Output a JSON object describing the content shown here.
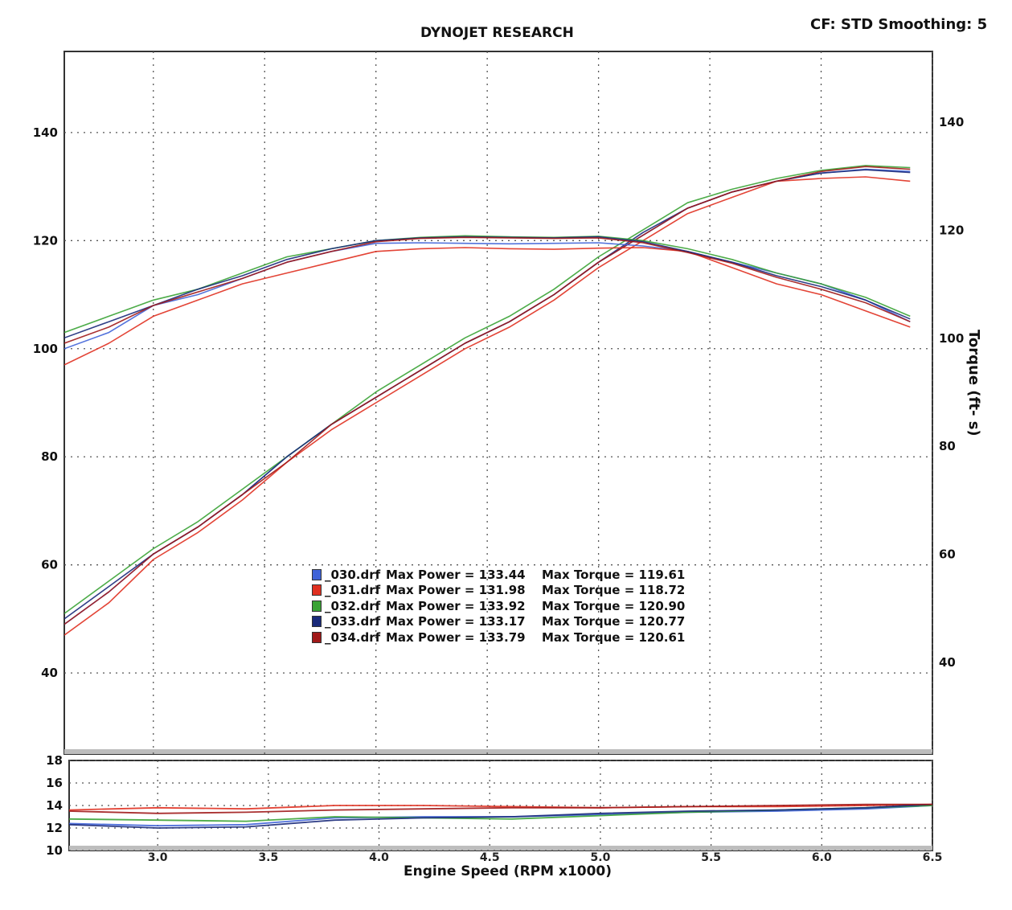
{
  "header": {
    "title": "DYNOJET RESEARCH",
    "settings": "CF: STD  Smoothing: 5"
  },
  "axes": {
    "xlabel": "Engine Speed (RPM x1000)",
    "ylabel_right": "Torque (ft- s)",
    "ylabel_left_main": "",
    "ylabel_left_afr": ""
  },
  "colors": {
    "030": "#3f63d8",
    "031": "#e03020",
    "032": "#3aa335",
    "033": "#1a2a7a",
    "034": "#a01818",
    "grid": "#555555"
  },
  "legend": [
    {
      "file": "_030.drf",
      "power": "Max Power = 133.44",
      "torque": "Max Torque = 119.61",
      "color": "#3f63d8"
    },
    {
      "file": "_031.drf",
      "power": "Max Power = 131.98",
      "torque": "Max Torque = 118.72",
      "color": "#e03020"
    },
    {
      "file": "_032.drf",
      "power": "Max Power = 133.92",
      "torque": "Max Torque = 120.90",
      "color": "#3aa335"
    },
    {
      "file": "_033.drf",
      "power": "Max Power = 133.17",
      "torque": "Max Torque = 120.77",
      "color": "#1a2a7a"
    },
    {
      "file": "_034.drf",
      "power": "Max Power = 133.79",
      "torque": "Max Torque = 120.61",
      "color": "#a01818"
    }
  ],
  "chart_data": [
    {
      "type": "line",
      "title": "DYNOJET RESEARCH",
      "xlabel": "Engine Speed (RPM x1000)",
      "ylabel": "",
      "y2label": "Torque (ft- s)",
      "xlim": [
        2.6,
        6.5
      ],
      "ylim": [
        25,
        155
      ],
      "y2lim": [
        25,
        155
      ],
      "x_ticks": [
        "3.0",
        "3.5",
        "4.0",
        "4.5",
        "5.0",
        "5.5",
        "6.0",
        "6.5"
      ],
      "y_ticks_left": [
        "40",
        "60",
        "80",
        "100",
        "120",
        "140"
      ],
      "y_ticks_right": [
        "40",
        "60",
        "80",
        "100",
        "120",
        "140"
      ],
      "grid": true,
      "x": [
        2.6,
        2.8,
        3.0,
        3.2,
        3.4,
        3.6,
        3.8,
        4.0,
        4.2,
        4.4,
        4.6,
        4.8,
        5.0,
        5.2,
        5.4,
        5.6,
        5.8,
        6.0,
        6.2,
        6.4
      ],
      "series": [
        {
          "name": "_030.drf Power",
          "axis": "left",
          "color": "#3f63d8",
          "values": [
            49,
            55,
            62,
            67,
            73,
            80,
            86,
            91,
            96,
            101,
            105,
            110,
            116,
            121,
            126,
            129,
            131,
            132.5,
            133.2,
            132.8
          ]
        },
        {
          "name": "_031.drf Power",
          "axis": "left",
          "color": "#e03020",
          "values": [
            47,
            53,
            61,
            66,
            72,
            79,
            85,
            90,
            95,
            100,
            104,
            109,
            115,
            120,
            125,
            128,
            131,
            131.5,
            131.8,
            131
          ]
        },
        {
          "name": "_032.drf Power",
          "axis": "left",
          "color": "#3aa335",
          "values": [
            51,
            57,
            63,
            68,
            74,
            80,
            86,
            92,
            97,
            102,
            106,
            111,
            117,
            122,
            127,
            129.5,
            131.5,
            133,
            133.9,
            133.5
          ]
        },
        {
          "name": "_033.drf Power",
          "axis": "left",
          "color": "#1a2a7a",
          "values": [
            50,
            56,
            62,
            67,
            73,
            80,
            86,
            91,
            96,
            101,
            105,
            110,
            116,
            121.5,
            126,
            129,
            131,
            132.5,
            133.1,
            132.6
          ]
        },
        {
          "name": "_034.drf Power",
          "axis": "left",
          "color": "#a01818",
          "values": [
            49,
            55,
            62,
            67,
            73,
            79,
            86,
            91,
            96,
            101,
            105,
            110,
            116,
            121,
            126,
            129,
            131,
            132.8,
            133.7,
            133.2
          ]
        },
        {
          "name": "_030.drf Torque",
          "axis": "right",
          "color": "#3f63d8",
          "values": [
            100,
            103,
            108,
            110,
            113,
            116,
            118,
            119.5,
            119.6,
            119.5,
            119.4,
            119.5,
            119.6,
            119,
            118,
            116,
            114,
            112,
            109,
            105
          ]
        },
        {
          "name": "_031.drf Torque",
          "axis": "right",
          "color": "#e03020",
          "values": [
            97,
            101,
            106,
            109,
            112,
            114,
            116,
            118,
            118.5,
            118.7,
            118.5,
            118.4,
            118.6,
            118.7,
            118,
            115,
            112,
            110,
            107,
            104
          ]
        },
        {
          "name": "_032.drf Torque",
          "axis": "right",
          "color": "#3aa335",
          "values": [
            103,
            106,
            109,
            111,
            114,
            117,
            118.5,
            120,
            120.6,
            120.9,
            120.7,
            120.6,
            120.8,
            120,
            118.5,
            116.5,
            114,
            112,
            109.5,
            106
          ]
        },
        {
          "name": "_033.drf Torque",
          "axis": "right",
          "color": "#1a2a7a",
          "values": [
            102,
            105,
            108,
            111,
            113.5,
            116.5,
            118.5,
            120,
            120.5,
            120.7,
            120.6,
            120.5,
            120.7,
            119.8,
            118,
            116,
            113.5,
            111.5,
            109,
            105.5
          ]
        },
        {
          "name": "_034.drf Torque",
          "axis": "right",
          "color": "#a01818",
          "values": [
            101,
            104,
            108,
            110.5,
            113,
            116,
            118,
            119.8,
            120.4,
            120.6,
            120.5,
            120.4,
            120.5,
            119.6,
            117.8,
            115.8,
            113.2,
            111,
            108.5,
            105
          ]
        }
      ]
    },
    {
      "type": "line",
      "title": "",
      "xlabel": "Engine Speed (RPM x1000)",
      "ylabel": "",
      "xlim": [
        2.6,
        6.5
      ],
      "ylim": [
        10,
        18
      ],
      "y_ticks": [
        "10",
        "12",
        "14",
        "16",
        "18"
      ],
      "grid": true,
      "x": [
        2.6,
        3.0,
        3.4,
        3.8,
        4.2,
        4.6,
        5.0,
        5.4,
        5.8,
        6.2,
        6.5
      ],
      "series": [
        {
          "name": "_030.drf AFR",
          "color": "#3f63d8",
          "values": [
            12.4,
            12.2,
            12.3,
            12.9,
            13.0,
            13.0,
            13.2,
            13.4,
            13.5,
            13.7,
            14.0
          ]
        },
        {
          "name": "_031.drf AFR",
          "color": "#e03020",
          "values": [
            13.6,
            13.8,
            13.7,
            14.0,
            14.0,
            13.9,
            13.8,
            13.9,
            13.9,
            14.0,
            14.1
          ]
        },
        {
          "name": "_032.drf AFR",
          "color": "#3aa335",
          "values": [
            12.8,
            12.7,
            12.6,
            13.0,
            12.9,
            12.8,
            13.1,
            13.4,
            13.6,
            13.8,
            14.0
          ]
        },
        {
          "name": "_033.drf AFR",
          "color": "#1a2a7a",
          "values": [
            12.3,
            12.0,
            12.1,
            12.7,
            12.9,
            13.0,
            13.3,
            13.5,
            13.6,
            13.8,
            14.1
          ]
        },
        {
          "name": "_034.drf AFR",
          "color": "#a01818",
          "values": [
            13.5,
            13.3,
            13.4,
            13.6,
            13.7,
            13.8,
            13.8,
            13.9,
            14.0,
            14.1,
            14.1
          ]
        }
      ]
    }
  ]
}
